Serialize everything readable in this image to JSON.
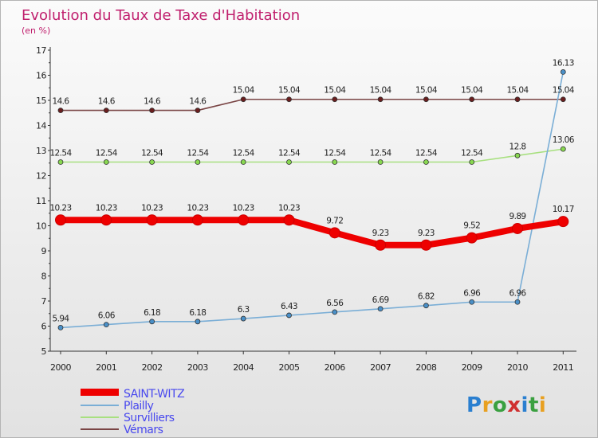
{
  "chart_data": {
    "type": "line",
    "title": "Evolution du Taux de Taxe d'Habitation",
    "subtitle": "(en %)",
    "xlabel": "",
    "ylabel": "",
    "ylim": [
      5,
      17
    ],
    "yticks": [
      "5",
      "6",
      "7",
      "8",
      "9",
      "10",
      "11",
      "12",
      "13",
      "14",
      "15",
      "16",
      "17"
    ],
    "categories": [
      "2000",
      "2001",
      "2002",
      "2003",
      "2004",
      "2005",
      "2006",
      "2007",
      "2008",
      "2009",
      "2010",
      "2011"
    ],
    "legend_position": "bottom-left",
    "series": [
      {
        "name": "SAINT-WITZ",
        "color": "#ee0000",
        "line_color": "#ee0000",
        "values": [
          10.23,
          10.23,
          10.23,
          10.23,
          10.23,
          10.23,
          9.72,
          9.23,
          9.23,
          9.52,
          9.89,
          10.17
        ],
        "labels": [
          "10.23",
          "10.23",
          "10.23",
          "10.23",
          "10.23",
          "10.23",
          "9.72",
          "9.23",
          "9.23",
          "9.52",
          "9.89",
          "10.17"
        ]
      },
      {
        "name": "Plailly",
        "color": "#4a90c8",
        "line_color": "#7aaed6",
        "values": [
          5.94,
          6.06,
          6.18,
          6.18,
          6.3,
          6.43,
          6.56,
          6.69,
          6.82,
          6.96,
          6.96,
          16.13
        ],
        "labels": [
          "5.94",
          "6.06",
          "6.18",
          "6.18",
          "6.3",
          "6.43",
          "6.56",
          "6.69",
          "6.82",
          "6.96",
          "6.96",
          "16.13"
        ]
      },
      {
        "name": "Survilliers",
        "color": "#88d850",
        "line_color": "#a8e080",
        "values": [
          12.54,
          12.54,
          12.54,
          12.54,
          12.54,
          12.54,
          12.54,
          12.54,
          12.54,
          12.54,
          12.8,
          13.06
        ],
        "labels": [
          "12.54",
          "12.54",
          "12.54",
          "12.54",
          "12.54",
          "12.54",
          "12.54",
          "12.54",
          "12.54",
          "12.54",
          "12.8",
          "13.06"
        ]
      },
      {
        "name": "Vémars",
        "color": "#6a1e1e",
        "line_color": "#7a4545",
        "values": [
          14.6,
          14.6,
          14.6,
          14.6,
          15.04,
          15.04,
          15.04,
          15.04,
          15.04,
          15.04,
          15.04,
          15.04
        ],
        "labels": [
          "14.6",
          "14.6",
          "14.6",
          "14.6",
          "15.04",
          "15.04",
          "15.04",
          "15.04",
          "15.04",
          "15.04",
          "15.04",
          "15.04"
        ]
      }
    ]
  },
  "logo": {
    "text": "Proxiti",
    "letters": [
      "P",
      "r",
      "o",
      "x",
      "i",
      "t",
      "i"
    ],
    "colors": [
      "#2a7fd0",
      "#e8a020",
      "#3aa040",
      "#d03030",
      "#2a7fd0",
      "#3aa040",
      "#e8a020"
    ]
  },
  "colors": {
    "title": "#c0206e",
    "legend_text": "#4848ee",
    "axis": "#333333"
  }
}
